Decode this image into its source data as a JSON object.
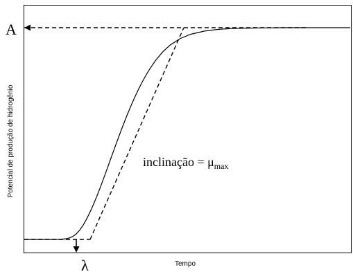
{
  "chart_data": {
    "type": "line",
    "title": "",
    "xlabel": "Tempo",
    "ylabel": "Potencial de produção de hidrogênio",
    "grid": false,
    "legend": "none",
    "labels": {
      "asymptote": "A",
      "lag": "λ",
      "slope_text": "inclinação = μ",
      "slope_sub": "max"
    },
    "series": [
      {
        "style": "solid",
        "x": [
          0,
          5,
          10,
          12,
          13,
          14,
          15,
          16,
          17,
          18,
          19,
          20,
          21,
          22,
          23,
          24,
          25,
          26,
          27,
          28,
          29,
          30,
          31,
          32,
          33,
          34,
          35,
          36,
          37,
          38,
          40,
          42,
          45,
          48,
          52,
          56,
          60,
          65,
          70,
          75,
          80,
          85,
          90,
          94
        ],
        "y": [
          0.0,
          0.0,
          0.0,
          0.003,
          0.007,
          0.014,
          0.026,
          0.044,
          0.068,
          0.097,
          0.13,
          0.167,
          0.207,
          0.249,
          0.293,
          0.338,
          0.384,
          0.429,
          0.474,
          0.518,
          0.56,
          0.601,
          0.64,
          0.676,
          0.711,
          0.743,
          0.773,
          0.8,
          0.825,
          0.848,
          0.887,
          0.917,
          0.949,
          0.969,
          0.984,
          0.992,
          0.996,
          0.998,
          0.999,
          1.0,
          1.0,
          1.0,
          1.0,
          1.0
        ]
      },
      {
        "style": "dashed",
        "x": [
          0,
          19
        ],
        "y": [
          0.0,
          0.0
        ]
      },
      {
        "style": "dashed",
        "x": [
          19,
          46
        ],
        "y": [
          0.0,
          1.0
        ]
      },
      {
        "style": "dashed",
        "x": [
          0,
          82
        ],
        "y": [
          1.0,
          1.0
        ]
      }
    ],
    "markers": [
      {
        "type": "arrow-left",
        "x": 0,
        "y": 1.0
      },
      {
        "type": "arrow-down",
        "x": 15,
        "y": 0.0
      }
    ]
  }
}
